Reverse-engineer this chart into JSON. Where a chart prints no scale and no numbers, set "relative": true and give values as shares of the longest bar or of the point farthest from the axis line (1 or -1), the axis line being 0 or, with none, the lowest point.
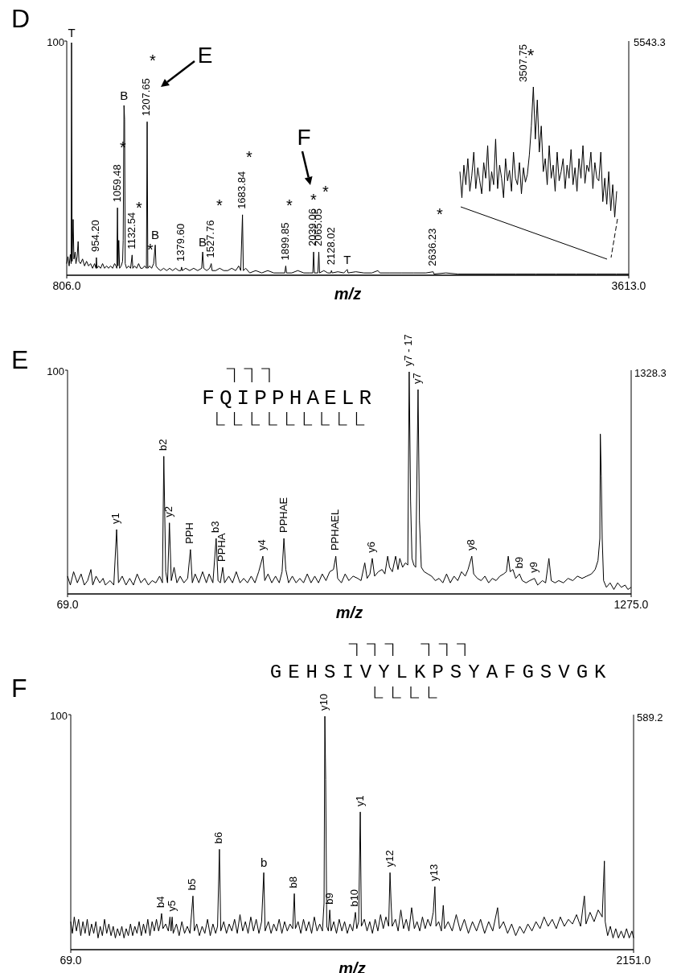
{
  "chart_data": [
    {
      "type": "line",
      "title": "D",
      "xlabel": "m/z",
      "relative": true,
      "color": "#000000",
      "xlim": [
        806,
        3613
      ],
      "xticks": [
        {
          "value": 806,
          "label": "806.0"
        },
        {
          "value": 3613,
          "label": "3613.0"
        }
      ],
      "x": [
        806,
        812,
        818,
        824,
        828,
        830,
        833,
        838,
        842,
        848,
        852,
        858,
        863,
        867,
        875,
        885,
        895,
        905,
        915,
        925,
        935,
        945,
        952,
        954.2,
        957,
        965,
        975,
        985,
        995,
        1005,
        1015,
        1025,
        1035,
        1045,
        1052,
        1056,
        1059.48,
        1062,
        1066,
        1070,
        1078,
        1085,
        1088,
        1092,
        1095,
        1098,
        1105,
        1115,
        1125,
        1132.54,
        1136,
        1145,
        1155,
        1165,
        1175,
        1185,
        1195,
        1204,
        1207.65,
        1211,
        1220,
        1230,
        1240,
        1248,
        1252,
        1260,
        1275,
        1290,
        1305,
        1320,
        1335,
        1350,
        1365,
        1376,
        1379.6,
        1383,
        1400,
        1420,
        1440,
        1460,
        1480,
        1485,
        1490,
        1505,
        1520,
        1527.76,
        1532,
        1550,
        1570,
        1590,
        1610,
        1630,
        1650,
        1665,
        1675,
        1683.84,
        1688,
        1700,
        1720,
        1750,
        1780,
        1810,
        1840,
        1870,
        1895,
        1899.85,
        1904,
        1930,
        1960,
        1990,
        2020,
        2035,
        2039.06,
        2043,
        2060,
        2065.05,
        2069,
        2090,
        2110,
        2125,
        2128.02,
        2132,
        2160,
        2190,
        2207,
        2211,
        2250,
        2290,
        2330,
        2360,
        2370,
        2420,
        2480,
        2540,
        2600,
        2636.23,
        2640,
        2700,
        2760,
        2850,
        2950,
        3050,
        3150,
        3250,
        3350,
        3450,
        3550,
        3613
      ],
      "values": [
        0.05,
        0.08,
        0.04,
        0.09,
        0.05,
        1.0,
        0.06,
        0.24,
        0.07,
        0.1,
        0.05,
        0.08,
        0.145,
        0.06,
        0.05,
        0.07,
        0.04,
        0.06,
        0.04,
        0.05,
        0.03,
        0.05,
        0.03,
        0.076,
        0.03,
        0.04,
        0.03,
        0.05,
        0.03,
        0.04,
        0.03,
        0.04,
        0.03,
        0.05,
        0.04,
        0.03,
        0.29,
        0.04,
        0.15,
        0.03,
        0.04,
        0.06,
        0.15,
        0.73,
        0.67,
        0.05,
        0.03,
        0.04,
        0.03,
        0.087,
        0.03,
        0.04,
        0.03,
        0.05,
        0.03,
        0.03,
        0.04,
        0.03,
        0.66,
        0.03,
        0.04,
        0.03,
        0.05,
        0.13,
        0.04,
        0.03,
        0.02,
        0.03,
        0.02,
        0.03,
        0.02,
        0.03,
        0.02,
        0.02,
        0.035,
        0.02,
        0.03,
        0.02,
        0.03,
        0.02,
        0.03,
        0.1,
        0.03,
        0.02,
        0.03,
        0.05,
        0.02,
        0.02,
        0.03,
        0.02,
        0.02,
        0.03,
        0.02,
        0.04,
        0.02,
        0.26,
        0.02,
        0.03,
        0.01,
        0.02,
        0.01,
        0.02,
        0.01,
        0.01,
        0.01,
        0.04,
        0.01,
        0.01,
        0.02,
        0.01,
        0.01,
        0.01,
        0.1,
        0.01,
        0.01,
        0.1,
        0.01,
        0.02,
        0.01,
        0.01,
        0.02,
        0.01,
        0.015,
        0.01,
        0.025,
        0.01,
        0.015,
        0.01,
        0.01,
        0.02,
        0.01,
        0.01,
        0.01,
        0.01,
        0.01,
        0.015,
        0.005,
        0.01,
        0.005,
        0.005,
        0.005,
        0.005,
        0.005,
        0.005,
        0.005,
        0.005,
        0.005,
        0.005
      ],
      "annotations": [
        {
          "text": "T",
          "x": 830,
          "y": 1.0
        },
        {
          "text": "954.20",
          "x": 954.2,
          "y": 0.076
        },
        {
          "text": "1059.48",
          "x": 1059.48,
          "y": 0.29
        },
        {
          "text": "B",
          "x": 1092,
          "y": 0.73
        },
        "*",
        {
          "text": "1132.54",
          "x": 1132.54,
          "y": 0.087
        },
        "*",
        {
          "text": "1207.65",
          "x": 1207.65,
          "y": 0.66
        },
        "*",
        "*",
        {
          "text": "B",
          "x": 1248,
          "y": 0.13
        },
        {
          "text": "1379.60",
          "x": 1379.6,
          "y": 0.035
        },
        {
          "text": "B",
          "x": 1485,
          "y": 0.1
        },
        {
          "text": "1527.76",
          "x": 1527.76,
          "y": 0.05
        },
        "*",
        {
          "text": "1683.84",
          "x": 1683.84,
          "y": 0.26
        },
        "*",
        {
          "text": "1899.85",
          "x": 1899.85,
          "y": 0.04
        },
        "*",
        {
          "text": "2039.06",
          "x": 2039.06,
          "y": 0.1
        },
        "*",
        {
          "text": "2065.05",
          "x": 2065.05,
          "y": 0.1
        },
        "*",
        {
          "text": "2128.02",
          "x": 2128.02,
          "y": 0.02
        },
        {
          "text": "T",
          "x": 2207,
          "y": 0.025
        },
        {
          "text": "2636.23",
          "x": 2636.23,
          "y": 0.015
        },
        "*",
        "E",
        "F",
        "100",
        "5543.3"
      ]
    },
    {
      "type": "line",
      "relative": true,
      "color": "#000000",
      "categories": [
        null,
        null,
        null,
        null,
        null,
        null,
        null,
        null,
        null,
        null,
        null,
        null,
        null,
        null,
        null,
        null,
        null,
        null,
        null,
        null,
        null,
        null,
        null,
        null,
        null,
        null,
        null,
        null,
        null,
        null,
        null,
        null,
        null,
        null,
        null,
        null,
        null,
        null,
        null,
        null,
        null,
        null,
        null,
        null,
        null,
        null,
        null,
        null,
        null,
        null,
        null,
        null,
        null,
        null,
        null,
        null,
        null,
        null,
        null,
        null,
        null,
        null,
        null,
        null,
        null,
        null,
        null,
        null,
        null,
        null,
        null,
        null,
        null,
        null,
        null,
        null,
        null,
        null,
        null,
        null
      ],
      "values": [
        0.35,
        0.15,
        0.4,
        0.25,
        0.45,
        0.2,
        0.32,
        0.5,
        0.22,
        0.38,
        0.28,
        0.18,
        0.42,
        0.3,
        0.55,
        0.2,
        0.35,
        0.25,
        0.6,
        0.22,
        0.4,
        0.3,
        0.15,
        0.45,
        0.28,
        0.36,
        0.2,
        0.5,
        0.3,
        0.25,
        0.42,
        0.18,
        0.38,
        0.27,
        0.33,
        0.48,
        0.7,
        1.0,
        0.6,
        0.9,
        0.5,
        0.7,
        0.35,
        0.45,
        0.25,
        0.55,
        0.3,
        0.4,
        0.2,
        0.5,
        0.28,
        0.35,
        0.45,
        0.22,
        0.4,
        0.3,
        0.52,
        0.25,
        0.38,
        0.2,
        0.45,
        0.3,
        0.55,
        0.26,
        0.4,
        0.35,
        0.5,
        0.22,
        0.42,
        0.3,
        0.28,
        0.5,
        0.12,
        0.3,
        0.1,
        0.35,
        0.05,
        0.25,
        0.0,
        0.2
      ],
      "annotations": [
        "3507.75",
        "*"
      ]
    },
    {
      "type": "line",
      "title": "E",
      "xlabel": "m/z",
      "relative": true,
      "color": "#000000",
      "xlim": [
        69,
        1275
      ],
      "xticks": [
        {
          "value": 69,
          "label": "69.0"
        },
        {
          "value": 1275,
          "label": "1275.0"
        }
      ],
      "x": [
        69,
        75,
        82,
        90,
        98,
        105,
        112,
        119,
        123,
        130,
        138,
        145,
        150,
        160,
        168,
        174,
        178,
        186,
        194,
        202,
        210,
        218,
        226,
        234,
        242,
        250,
        258,
        266,
        272,
        275,
        279,
        283,
        287,
        291,
        297,
        303,
        310,
        318,
        326,
        332,
        336,
        342,
        350,
        358,
        366,
        372,
        380,
        387,
        391,
        396,
        401,
        405,
        414,
        422,
        430,
        438,
        446,
        454,
        462,
        470,
        478,
        487,
        491,
        498,
        506,
        514,
        522,
        528,
        532,
        536,
        542,
        550,
        558,
        566,
        574,
        582,
        590,
        598,
        606,
        614,
        622,
        630,
        638,
        643,
        647,
        655,
        663,
        671,
        680,
        690,
        697,
        705,
        710,
        716,
        721,
        726,
        734,
        742,
        748,
        754,
        758,
        764,
        771,
        776,
        780,
        786,
        792,
        797,
        800,
        803,
        806,
        810,
        814,
        819,
        822,
        826,
        832,
        840,
        848,
        856,
        864,
        872,
        880,
        888,
        896,
        904,
        912,
        920,
        926,
        934,
        938,
        946,
        954,
        962,
        970,
        978,
        986,
        994,
        1002,
        1008,
        1012,
        1016,
        1022,
        1028,
        1036,
        1042,
        1050,
        1058,
        1068,
        1075,
        1085,
        1092,
        1099,
        1104,
        1112,
        1120,
        1130,
        1140,
        1150,
        1160,
        1170,
        1180,
        1190,
        1198,
        1204,
        1208,
        1209,
        1211,
        1213,
        1216,
        1222,
        1230,
        1238,
        1246,
        1254,
        1262,
        1268,
        1275
      ],
      "values": [
        0.08,
        0.04,
        0.1,
        0.05,
        0.09,
        0.04,
        0.06,
        0.11,
        0.04,
        0.08,
        0.05,
        0.07,
        0.04,
        0.06,
        0.04,
        0.29,
        0.05,
        0.08,
        0.04,
        0.07,
        0.04,
        0.09,
        0.05,
        0.07,
        0.04,
        0.06,
        0.05,
        0.08,
        0.05,
        0.62,
        0.1,
        0.05,
        0.32,
        0.06,
        0.12,
        0.05,
        0.08,
        0.05,
        0.07,
        0.2,
        0.05,
        0.09,
        0.05,
        0.1,
        0.05,
        0.09,
        0.05,
        0.25,
        0.06,
        0.05,
        0.12,
        0.05,
        0.08,
        0.05,
        0.1,
        0.05,
        0.07,
        0.05,
        0.08,
        0.05,
        0.1,
        0.17,
        0.06,
        0.09,
        0.05,
        0.08,
        0.05,
        0.1,
        0.25,
        0.11,
        0.05,
        0.08,
        0.05,
        0.07,
        0.05,
        0.09,
        0.05,
        0.08,
        0.05,
        0.09,
        0.06,
        0.1,
        0.11,
        0.17,
        0.07,
        0.05,
        0.09,
        0.06,
        0.08,
        0.07,
        0.06,
        0.14,
        0.07,
        0.09,
        0.16,
        0.08,
        0.1,
        0.11,
        0.09,
        0.17,
        0.12,
        0.1,
        0.17,
        0.11,
        0.16,
        0.12,
        0.14,
        0.13,
        1.0,
        0.42,
        0.16,
        0.13,
        0.12,
        0.92,
        0.33,
        0.12,
        0.1,
        0.09,
        0.08,
        0.06,
        0.07,
        0.05,
        0.09,
        0.05,
        0.08,
        0.06,
        0.1,
        0.08,
        0.11,
        0.17,
        0.09,
        0.07,
        0.06,
        0.08,
        0.05,
        0.07,
        0.06,
        0.08,
        0.09,
        0.1,
        0.17,
        0.1,
        0.11,
        0.07,
        0.09,
        0.06,
        0.05,
        0.06,
        0.07,
        0.04,
        0.06,
        0.05,
        0.16,
        0.06,
        0.05,
        0.06,
        0.05,
        0.07,
        0.06,
        0.08,
        0.07,
        0.08,
        0.09,
        0.11,
        0.15,
        0.25,
        0.72,
        0.53,
        0.25,
        0.06,
        0.03,
        0.05,
        0.02,
        0.05,
        0.03,
        0.04,
        0.02,
        0.03
      ],
      "annotations": [
        {
          "text": "y1",
          "x": 174,
          "y": 0.29
        },
        {
          "text": "b2",
          "x": 275,
          "y": 0.62
        },
        {
          "text": "y2",
          "x": 287,
          "y": 0.32
        },
        {
          "text": "PPH",
          "x": 332,
          "y": 0.2
        },
        {
          "text": "b3",
          "x": 387,
          "y": 0.25
        },
        {
          "text": "PPHA",
          "x": 401,
          "y": 0.12
        },
        {
          "text": "y4",
          "x": 487,
          "y": 0.17
        },
        {
          "text": "PPHAE",
          "x": 532,
          "y": 0.25
        },
        {
          "text": "PPHAEL",
          "x": 643,
          "y": 0.17
        },
        {
          "text": "y6",
          "x": 721,
          "y": 0.16
        },
        {
          "text": "y7 - 17",
          "x": 800,
          "y": 1.0
        },
        {
          "text": "y7",
          "x": 819,
          "y": 0.92
        },
        {
          "text": "y8",
          "x": 934,
          "y": 0.17
        },
        {
          "text": "b9",
          "x": 1036,
          "y": 0.09
        },
        {
          "text": "y9",
          "x": 1068,
          "y": 0.07
        },
        "FQIPPHAELR",
        "100",
        "1328.3"
      ]
    },
    {
      "type": "line",
      "title": "F",
      "xlabel": "m/z",
      "relative": true,
      "color": "#000000",
      "xlim": [
        69,
        2151
      ],
      "xticks": [
        {
          "value": 69,
          "label": "69.0"
        },
        {
          "value": 2151,
          "label": "2151.0"
        }
      ],
      "x": [
        69,
        75,
        82,
        90,
        98,
        106,
        114,
        122,
        130,
        138,
        146,
        154,
        162,
        170,
        178,
        186,
        194,
        202,
        210,
        218,
        226,
        234,
        242,
        250,
        258,
        266,
        274,
        282,
        290,
        298,
        306,
        314,
        322,
        330,
        338,
        346,
        354,
        362,
        370,
        378,
        386,
        394,
        400,
        405,
        410,
        420,
        430,
        436,
        440,
        444,
        448,
        460,
        470,
        480,
        490,
        500,
        510,
        521,
        526,
        535,
        545,
        555,
        565,
        575,
        585,
        595,
        605,
        612,
        619,
        624,
        635,
        645,
        655,
        665,
        675,
        685,
        695,
        705,
        715,
        725,
        735,
        745,
        755,
        765,
        775,
        783,
        788,
        800,
        810,
        820,
        830,
        840,
        850,
        860,
        870,
        880,
        890,
        896,
        900,
        910,
        920,
        930,
        940,
        950,
        960,
        970,
        980,
        990,
        1000,
        1006,
        1009,
        1012,
        1016,
        1022,
        1027,
        1032,
        1042,
        1052,
        1062,
        1072,
        1082,
        1092,
        1102,
        1112,
        1122,
        1127,
        1134,
        1140,
        1144,
        1155,
        1165,
        1175,
        1185,
        1195,
        1205,
        1215,
        1225,
        1235,
        1245,
        1250,
        1254,
        1258,
        1270,
        1280,
        1290,
        1300,
        1310,
        1320,
        1330,
        1340,
        1350,
        1360,
        1370,
        1380,
        1390,
        1400,
        1410,
        1416,
        1420,
        1430,
        1440,
        1447,
        1452,
        1465,
        1480,
        1495,
        1510,
        1525,
        1540,
        1555,
        1570,
        1585,
        1600,
        1615,
        1630,
        1648,
        1655,
        1670,
        1685,
        1700,
        1715,
        1730,
        1745,
        1760,
        1775,
        1790,
        1805,
        1820,
        1835,
        1850,
        1865,
        1880,
        1895,
        1910,
        1925,
        1940,
        1955,
        1969,
        1975,
        1990,
        2005,
        2020,
        2035,
        2040,
        2043,
        2046,
        2055,
        2065,
        2075,
        2085,
        2095,
        2105,
        2115,
        2125,
        2135,
        2145,
        2151
      ],
      "values": [
        0.12,
        0.07,
        0.14,
        0.08,
        0.13,
        0.06,
        0.12,
        0.07,
        0.13,
        0.06,
        0.11,
        0.07,
        0.12,
        0.05,
        0.1,
        0.06,
        0.13,
        0.07,
        0.11,
        0.06,
        0.1,
        0.05,
        0.09,
        0.06,
        0.1,
        0.05,
        0.09,
        0.06,
        0.11,
        0.06,
        0.1,
        0.07,
        0.12,
        0.06,
        0.11,
        0.07,
        0.13,
        0.06,
        0.12,
        0.08,
        0.13,
        0.08,
        0.11,
        0.155,
        0.09,
        0.11,
        0.08,
        0.14,
        0.08,
        0.14,
        0.07,
        0.11,
        0.06,
        0.12,
        0.07,
        0.1,
        0.07,
        0.23,
        0.08,
        0.11,
        0.06,
        0.1,
        0.07,
        0.13,
        0.06,
        0.11,
        0.07,
        0.1,
        0.43,
        0.08,
        0.12,
        0.07,
        0.11,
        0.08,
        0.13,
        0.07,
        0.15,
        0.08,
        0.12,
        0.07,
        0.14,
        0.08,
        0.13,
        0.07,
        0.12,
        0.33,
        0.08,
        0.12,
        0.07,
        0.11,
        0.08,
        0.13,
        0.07,
        0.12,
        0.08,
        0.11,
        0.09,
        0.24,
        0.09,
        0.12,
        0.07,
        0.13,
        0.08,
        0.12,
        0.07,
        0.14,
        0.08,
        0.11,
        0.08,
        0.2,
        1.0,
        0.73,
        0.1,
        0.08,
        0.17,
        0.08,
        0.12,
        0.07,
        0.13,
        0.08,
        0.12,
        0.07,
        0.11,
        0.08,
        0.16,
        0.09,
        0.12,
        0.59,
        0.1,
        0.13,
        0.08,
        0.12,
        0.07,
        0.13,
        0.08,
        0.15,
        0.09,
        0.14,
        0.1,
        0.33,
        0.2,
        0.1,
        0.13,
        0.08,
        0.17,
        0.09,
        0.13,
        0.08,
        0.18,
        0.09,
        0.12,
        0.08,
        0.14,
        0.09,
        0.13,
        0.1,
        0.16,
        0.27,
        0.1,
        0.12,
        0.08,
        0.19,
        0.09,
        0.12,
        0.08,
        0.15,
        0.08,
        0.13,
        0.07,
        0.12,
        0.08,
        0.13,
        0.07,
        0.12,
        0.08,
        0.18,
        0.09,
        0.12,
        0.07,
        0.11,
        0.06,
        0.1,
        0.07,
        0.11,
        0.08,
        0.12,
        0.09,
        0.14,
        0.1,
        0.13,
        0.09,
        0.14,
        0.1,
        0.13,
        0.11,
        0.15,
        0.1,
        0.23,
        0.11,
        0.16,
        0.12,
        0.17,
        0.14,
        0.29,
        0.38,
        0.12,
        0.06,
        0.1,
        0.05,
        0.09,
        0.05,
        0.08,
        0.05,
        0.09,
        0.05,
        0.08,
        0.05
      ],
      "annotations": [
        {
          "text": "b4",
          "x": 405,
          "y": 0.155
        },
        {
          "text": "y5",
          "x": 444,
          "y": 0.14
        },
        {
          "text": "b5",
          "x": 521,
          "y": 0.23
        },
        {
          "text": "b6",
          "x": 619,
          "y": 0.43
        },
        {
          "text": "b",
          "x": 783,
          "y": 0.33
        },
        {
          "text": "b8",
          "x": 896,
          "y": 0.24
        },
        {
          "text": "y10",
          "x": 1009,
          "y": 1.0
        },
        {
          "text": "b9",
          "x": 1027,
          "y": 0.17
        },
        {
          "text": "b10",
          "x": 1122,
          "y": 0.16
        },
        {
          "text": "y1",
          "x": 1140,
          "y": 0.59
        },
        {
          "text": "y12",
          "x": 1250,
          "y": 0.33
        },
        {
          "text": "y13",
          "x": 1416,
          "y": 0.27
        },
        "GEHSIVYLKPSYAFGSVGK",
        "100",
        "589.2"
      ]
    }
  ]
}
